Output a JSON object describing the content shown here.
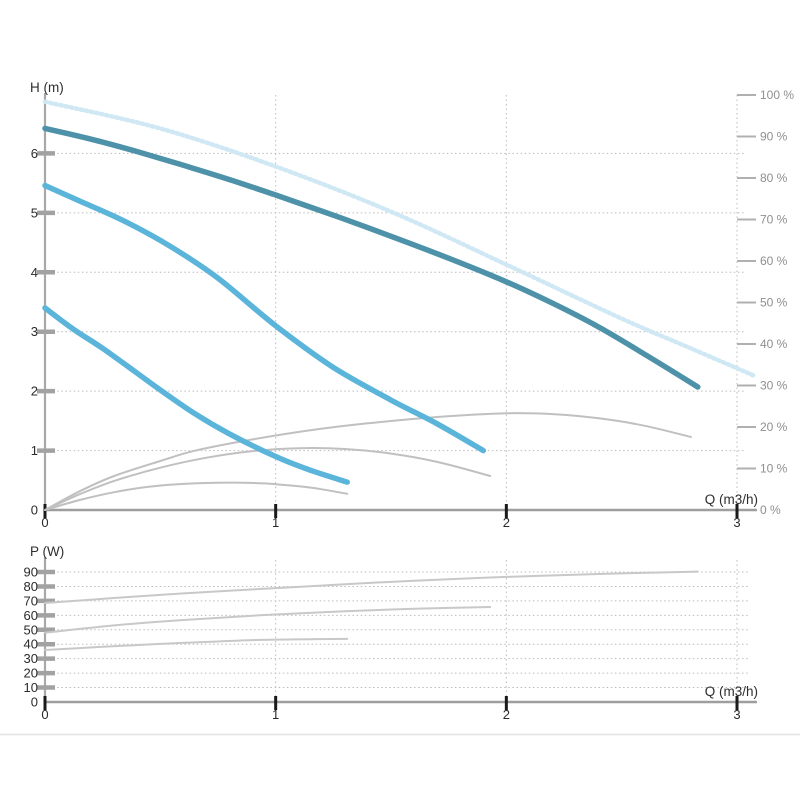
{
  "page": {
    "background": "#ffffff",
    "divider_color": "#e3e3e3"
  },
  "chart_data": [
    {
      "id": "head-flow-chart",
      "type": "line",
      "title": "H (m)",
      "xlabel": "Q (m3/h)",
      "x_range": [
        0,
        3
      ],
      "y_range": [
        0,
        7
      ],
      "right_axis_range": [
        0,
        100
      ],
      "grid": true,
      "legend": "none",
      "x_ticks": [
        {
          "v": 0,
          "label": "0"
        },
        {
          "v": 1,
          "label": "1"
        },
        {
          "v": 2,
          "label": "2"
        },
        {
          "v": 3,
          "label": "3"
        }
      ],
      "y_ticks": [
        {
          "v": 0,
          "label": "0"
        },
        {
          "v": 1,
          "label": "1"
        },
        {
          "v": 2,
          "label": "2"
        },
        {
          "v": 3,
          "label": "3"
        },
        {
          "v": 4,
          "label": "4"
        },
        {
          "v": 5,
          "label": "5"
        },
        {
          "v": 6,
          "label": "6"
        }
      ],
      "right_ticks": [
        {
          "v": 0,
          "label": "0 %"
        },
        {
          "v": 10,
          "label": "10 %"
        },
        {
          "v": 20,
          "label": "20 %"
        },
        {
          "v": 30,
          "label": "30 %"
        },
        {
          "v": 40,
          "label": "40 %"
        },
        {
          "v": 50,
          "label": "50 %"
        },
        {
          "v": 60,
          "label": "60 %"
        },
        {
          "v": 70,
          "label": "70 %"
        },
        {
          "v": 80,
          "label": "80 %"
        },
        {
          "v": 90,
          "label": "90 %"
        },
        {
          "v": 100,
          "label": "100 %"
        }
      ],
      "series": [
        {
          "name": "max-speed-dotted-curve",
          "axis": "left",
          "color": "#cfe8f4",
          "width": 4.5,
          "style": "dotted",
          "points": [
            [
              0,
              6.87
            ],
            [
              0.5,
              6.42
            ],
            [
              1,
              5.78
            ],
            [
              1.5,
              5.02
            ],
            [
              2,
              4.13
            ],
            [
              2.5,
              3.22
            ],
            [
              2.8,
              2.72
            ],
            [
              3.08,
              2.25
            ]
          ]
        },
        {
          "name": "speed3-efficiency-curve",
          "axis": "right",
          "color": "#c0c0c0",
          "width": 2,
          "style": "solid",
          "points": [
            [
              0,
              0
            ],
            [
              0.15,
              4.5
            ],
            [
              0.3,
              8.2
            ],
            [
              0.5,
              11.8
            ],
            [
              0.65,
              14.3
            ],
            [
              0.9,
              17
            ],
            [
              1.15,
              19.2
            ],
            [
              1.4,
              20.9
            ],
            [
              1.7,
              22.4
            ],
            [
              2,
              23.3
            ],
            [
              2.2,
              23.1
            ],
            [
              2.4,
              22.1
            ],
            [
              2.6,
              20.3
            ],
            [
              2.8,
              17.6
            ]
          ]
        },
        {
          "name": "speed2-efficiency-curve",
          "axis": "right",
          "color": "#c0c0c0",
          "width": 2,
          "style": "solid",
          "points": [
            [
              0,
              0
            ],
            [
              0.15,
              3.8
            ],
            [
              0.3,
              7
            ],
            [
              0.5,
              10.2
            ],
            [
              0.7,
              12.6
            ],
            [
              0.9,
              14.2
            ],
            [
              1.1,
              14.9
            ],
            [
              1.3,
              14.7
            ],
            [
              1.5,
              13.6
            ],
            [
              1.7,
              11.6
            ],
            [
              1.93,
              8.2
            ]
          ]
        },
        {
          "name": "speed1-efficiency-curve",
          "axis": "right",
          "color": "#c0c0c0",
          "width": 2,
          "style": "solid",
          "points": [
            [
              0,
              0
            ],
            [
              0.15,
              2.4
            ],
            [
              0.3,
              4.3
            ],
            [
              0.45,
              5.6
            ],
            [
              0.6,
              6.3
            ],
            [
              0.8,
              6.6
            ],
            [
              0.95,
              6.4
            ],
            [
              1.1,
              5.7
            ],
            [
              1.2,
              5
            ],
            [
              1.31,
              3.9
            ]
          ]
        },
        {
          "name": "speed1-head-curve",
          "axis": "left",
          "color": "#5bb4d9",
          "width": 5.5,
          "style": "solid",
          "points": [
            [
              0,
              3.4
            ],
            [
              0.12,
              3.05
            ],
            [
              0.25,
              2.72
            ],
            [
              0.4,
              2.3
            ],
            [
              0.5,
              2.02
            ],
            [
              0.65,
              1.62
            ],
            [
              0.8,
              1.28
            ],
            [
              1,
              0.9
            ],
            [
              1.15,
              0.67
            ],
            [
              1.31,
              0.47
            ]
          ]
        },
        {
          "name": "speed2-head-curve",
          "axis": "left",
          "color": "#5bb4d9",
          "width": 5.5,
          "style": "solid",
          "points": [
            [
              0,
              5.46
            ],
            [
              0.15,
              5.2
            ],
            [
              0.35,
              4.85
            ],
            [
              0.55,
              4.42
            ],
            [
              0.75,
              3.9
            ],
            [
              1,
              3.1
            ],
            [
              1.25,
              2.4
            ],
            [
              1.5,
              1.85
            ],
            [
              1.7,
              1.45
            ],
            [
              1.9,
              1
            ]
          ]
        },
        {
          "name": "speed3-head-curve",
          "axis": "left",
          "color": "#4d92a9",
          "width": 5.5,
          "style": "solid",
          "points": [
            [
              0,
              6.42
            ],
            [
              0.2,
              6.24
            ],
            [
              0.4,
              6.03
            ],
            [
              0.6,
              5.8
            ],
            [
              0.8,
              5.56
            ],
            [
              1,
              5.3
            ],
            [
              1.2,
              5.03
            ],
            [
              1.4,
              4.75
            ],
            [
              1.6,
              4.46
            ],
            [
              1.8,
              4.16
            ],
            [
              2,
              3.84
            ],
            [
              2.2,
              3.48
            ],
            [
              2.4,
              3.08
            ],
            [
              2.6,
              2.62
            ],
            [
              2.83,
              2.07
            ]
          ]
        }
      ]
    },
    {
      "id": "power-chart",
      "type": "line",
      "title": "P (W)",
      "xlabel": "Q (m3/h)",
      "x_range": [
        0,
        3
      ],
      "y_range": [
        0,
        95
      ],
      "grid": true,
      "legend": "none",
      "x_ticks": [
        {
          "v": 0,
          "label": "0"
        },
        {
          "v": 1,
          "label": "1"
        },
        {
          "v": 2,
          "label": "2"
        },
        {
          "v": 3,
          "label": "3"
        }
      ],
      "y_ticks": [
        {
          "v": 0,
          "label": "0"
        },
        {
          "v": 10,
          "label": "10"
        },
        {
          "v": 20,
          "label": "20"
        },
        {
          "v": 30,
          "label": "30"
        },
        {
          "v": 40,
          "label": "40"
        },
        {
          "v": 50,
          "label": "50"
        },
        {
          "v": 60,
          "label": "60"
        },
        {
          "v": 70,
          "label": "70"
        },
        {
          "v": 80,
          "label": "80"
        },
        {
          "v": 90,
          "label": "90"
        }
      ],
      "series": [
        {
          "name": "speed3-power-curve",
          "axis": "left",
          "color": "#c8c8c8",
          "width": 2,
          "style": "solid",
          "points": [
            [
              0,
              68.5
            ],
            [
              0.3,
              72
            ],
            [
              0.6,
              75.2
            ],
            [
              0.93,
              78.2
            ],
            [
              1.3,
              81.5
            ],
            [
              1.6,
              84
            ],
            [
              2,
              86.6
            ],
            [
              2.4,
              88.6
            ],
            [
              2.83,
              90.3
            ]
          ]
        },
        {
          "name": "speed2-power-curve",
          "axis": "left",
          "color": "#c8c8c8",
          "width": 2,
          "style": "solid",
          "points": [
            [
              0,
              48
            ],
            [
              0.3,
              53
            ],
            [
              0.6,
              56.8
            ],
            [
              0.93,
              60
            ],
            [
              1.3,
              62.8
            ],
            [
              1.6,
              64.5
            ],
            [
              1.93,
              65.8
            ]
          ]
        },
        {
          "name": "speed1-power-curve",
          "axis": "left",
          "color": "#c8c8c8",
          "width": 2,
          "style": "solid",
          "points": [
            [
              0,
              36
            ],
            [
              0.25,
              38.2
            ],
            [
              0.5,
              40.2
            ],
            [
              0.75,
              41.9
            ],
            [
              0.93,
              43
            ],
            [
              1.15,
              43.5
            ],
            [
              1.31,
              43.7
            ]
          ]
        }
      ]
    }
  ]
}
